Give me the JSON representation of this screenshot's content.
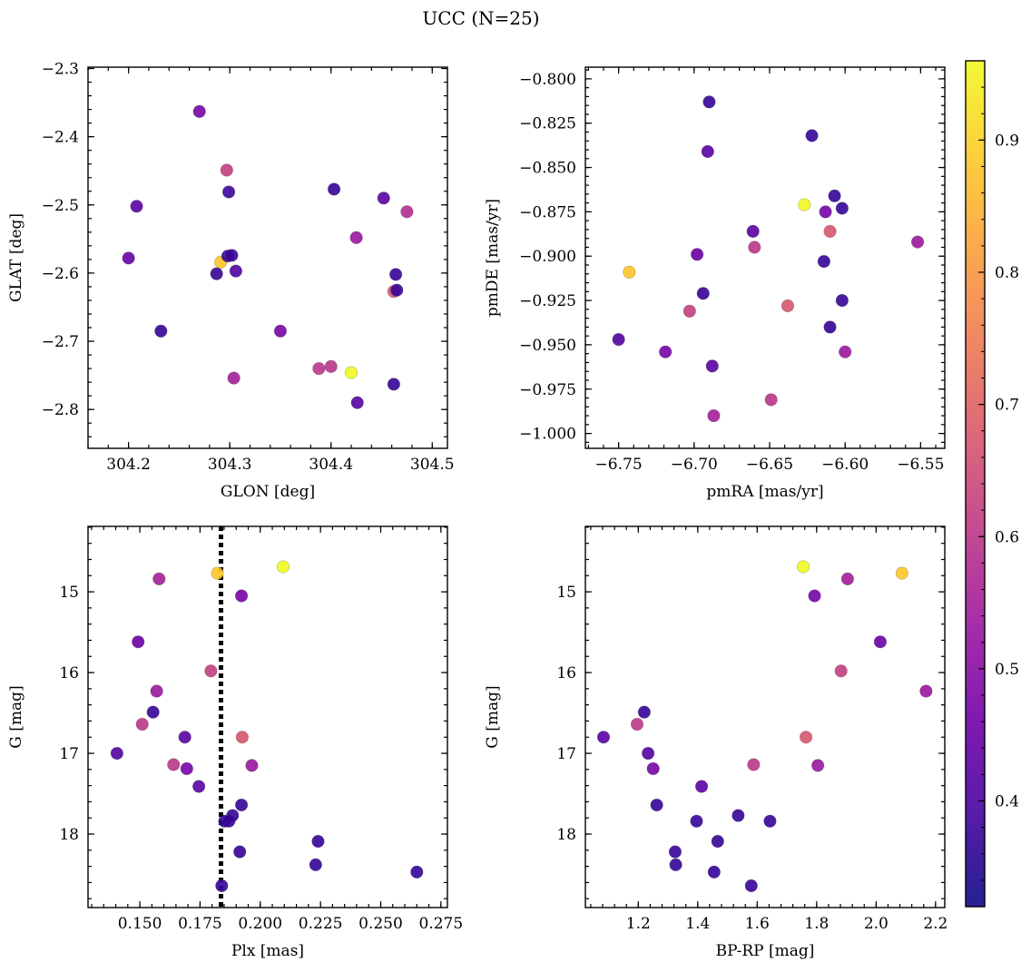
{
  "title": "UCC (N=25)",
  "colormap": {
    "name": "plasma",
    "range": [
      0.32,
      0.96
    ],
    "ticks": [
      0.4,
      0.5,
      0.6,
      0.7,
      0.8,
      0.9
    ],
    "stops": [
      "#0d0887",
      "#46039f",
      "#7201a8",
      "#9c179e",
      "#bd3786",
      "#d8576b",
      "#ed7953",
      "#fb9f3a",
      "#fdca26",
      "#f0f921"
    ]
  },
  "chart_data": [
    {
      "type": "scatter",
      "id": "sky",
      "xlabel": "GLON [deg]",
      "ylabel": "GLAT [deg]",
      "xlim": [
        304.16,
        304.515
      ],
      "ylim": [
        -2.857,
        -2.298
      ],
      "y_inverted": false,
      "xticks": [
        304.2,
        304.3,
        304.4,
        304.5
      ],
      "xtick_labels": [
        "304.2",
        "304.3",
        "304.4",
        "304.5"
      ],
      "yticks": [
        -2.3,
        -2.4,
        -2.5,
        -2.6,
        -2.7,
        -2.8
      ],
      "ytick_labels": [
        "−2.3",
        "−2.4",
        "−2.5",
        "−2.6",
        "−2.7",
        "−2.8"
      ],
      "points": [
        {
          "x": 304.27,
          "y": -2.363,
          "c": 0.47
        },
        {
          "x": 304.297,
          "y": -2.449,
          "c": 0.62
        },
        {
          "x": 304.299,
          "y": -2.481,
          "c": 0.38
        },
        {
          "x": 304.208,
          "y": -2.502,
          "c": 0.42
        },
        {
          "x": 304.403,
          "y": -2.477,
          "c": 0.37
        },
        {
          "x": 304.452,
          "y": -2.49,
          "c": 0.42
        },
        {
          "x": 304.475,
          "y": -2.51,
          "c": 0.58
        },
        {
          "x": 304.425,
          "y": -2.548,
          "c": 0.53
        },
        {
          "x": 304.2,
          "y": -2.578,
          "c": 0.45
        },
        {
          "x": 304.291,
          "y": -2.584,
          "c": 0.88
        },
        {
          "x": 304.298,
          "y": -2.575,
          "c": 0.37
        },
        {
          "x": 304.302,
          "y": -2.574,
          "c": 0.37
        },
        {
          "x": 304.306,
          "y": -2.597,
          "c": 0.41
        },
        {
          "x": 304.287,
          "y": -2.601,
          "c": 0.37
        },
        {
          "x": 304.464,
          "y": -2.602,
          "c": 0.37
        },
        {
          "x": 304.462,
          "y": -2.627,
          "c": 0.67
        },
        {
          "x": 304.465,
          "y": -2.625,
          "c": 0.37
        },
        {
          "x": 304.232,
          "y": -2.685,
          "c": 0.37
        },
        {
          "x": 304.35,
          "y": -2.685,
          "c": 0.47
        },
        {
          "x": 304.388,
          "y": -2.74,
          "c": 0.6
        },
        {
          "x": 304.4,
          "y": -2.737,
          "c": 0.6
        },
        {
          "x": 304.42,
          "y": -2.746,
          "c": 0.96
        },
        {
          "x": 304.304,
          "y": -2.754,
          "c": 0.55
        },
        {
          "x": 304.462,
          "y": -2.763,
          "c": 0.37
        },
        {
          "x": 304.426,
          "y": -2.79,
          "c": 0.42
        }
      ]
    },
    {
      "type": "scatter",
      "id": "pm",
      "xlabel": "pmRA [mas/yr]",
      "ylabel": "pmDE [mas/yr]",
      "xlim": [
        -6.772,
        -6.534
      ],
      "ylim": [
        -1.0084,
        -0.7934
      ],
      "y_inverted": false,
      "xticks": [
        -6.75,
        -6.7,
        -6.65,
        -6.6,
        -6.55
      ],
      "xtick_labels": [
        "−6.75",
        "−6.70",
        "−6.65",
        "−6.60",
        "−6.55"
      ],
      "yticks": [
        -0.8,
        -0.825,
        -0.85,
        -0.875,
        -0.9,
        -0.925,
        -0.95,
        -0.975,
        -1.0
      ],
      "ytick_labels": [
        "−0.800",
        "−0.825",
        "−0.850",
        "−0.875",
        "−0.900",
        "−0.925",
        "−0.950",
        "−0.975",
        "−1.000"
      ],
      "points": [
        {
          "x": -6.69,
          "y": -0.813,
          "c": 0.37
        },
        {
          "x": -6.622,
          "y": -0.832,
          "c": 0.37
        },
        {
          "x": -6.691,
          "y": -0.841,
          "c": 0.42
        },
        {
          "x": -6.607,
          "y": -0.866,
          "c": 0.37
        },
        {
          "x": -6.627,
          "y": -0.871,
          "c": 0.96
        },
        {
          "x": -6.602,
          "y": -0.873,
          "c": 0.37
        },
        {
          "x": -6.613,
          "y": -0.875,
          "c": 0.47
        },
        {
          "x": -6.661,
          "y": -0.886,
          "c": 0.42
        },
        {
          "x": -6.61,
          "y": -0.886,
          "c": 0.67
        },
        {
          "x": -6.552,
          "y": -0.892,
          "c": 0.53
        },
        {
          "x": -6.66,
          "y": -0.895,
          "c": 0.6
        },
        {
          "x": -6.698,
          "y": -0.899,
          "c": 0.45
        },
        {
          "x": -6.614,
          "y": -0.903,
          "c": 0.37
        },
        {
          "x": -6.743,
          "y": -0.909,
          "c": 0.88
        },
        {
          "x": -6.694,
          "y": -0.921,
          "c": 0.37
        },
        {
          "x": -6.602,
          "y": -0.925,
          "c": 0.37
        },
        {
          "x": -6.638,
          "y": -0.928,
          "c": 0.67
        },
        {
          "x": -6.703,
          "y": -0.931,
          "c": 0.62
        },
        {
          "x": -6.61,
          "y": -0.94,
          "c": 0.37
        },
        {
          "x": -6.75,
          "y": -0.947,
          "c": 0.41
        },
        {
          "x": -6.719,
          "y": -0.954,
          "c": 0.47
        },
        {
          "x": -6.6,
          "y": -0.954,
          "c": 0.53
        },
        {
          "x": -6.688,
          "y": -0.962,
          "c": 0.42
        },
        {
          "x": -6.649,
          "y": -0.981,
          "c": 0.6
        },
        {
          "x": -6.687,
          "y": -0.99,
          "c": 0.55
        }
      ]
    },
    {
      "type": "scatter",
      "id": "plx",
      "xlabel": "Plx [mas]",
      "ylabel": "G [mag]",
      "xlim": [
        0.1285,
        0.2777
      ],
      "ylim": [
        18.91,
        14.19
      ],
      "y_inverted": true,
      "vline": {
        "x": 0.1837,
        "style": "dotted"
      },
      "xticks": [
        0.15,
        0.175,
        0.2,
        0.225,
        0.25,
        0.275
      ],
      "xtick_labels": [
        "0.150",
        "0.175",
        "0.200",
        "0.225",
        "0.250",
        "0.275"
      ],
      "yticks": [
        15,
        16,
        17,
        18
      ],
      "ytick_labels": [
        "15",
        "16",
        "17",
        "18"
      ],
      "points": [
        {
          "x": 0.2095,
          "y": 14.69,
          "c": 0.96
        },
        {
          "x": 0.1822,
          "y": 14.77,
          "c": 0.88
        },
        {
          "x": 0.158,
          "y": 14.84,
          "c": 0.55
        },
        {
          "x": 0.1922,
          "y": 15.05,
          "c": 0.47
        },
        {
          "x": 0.1493,
          "y": 15.62,
          "c": 0.45
        },
        {
          "x": 0.1795,
          "y": 15.98,
          "c": 0.62
        },
        {
          "x": 0.157,
          "y": 16.23,
          "c": 0.53
        },
        {
          "x": 0.1555,
          "y": 16.49,
          "c": 0.37
        },
        {
          "x": 0.151,
          "y": 16.64,
          "c": 0.6
        },
        {
          "x": 0.1687,
          "y": 16.8,
          "c": 0.42
        },
        {
          "x": 0.1925,
          "y": 16.8,
          "c": 0.67
        },
        {
          "x": 0.1405,
          "y": 17.0,
          "c": 0.41
        },
        {
          "x": 0.164,
          "y": 17.14,
          "c": 0.6
        },
        {
          "x": 0.1965,
          "y": 17.15,
          "c": 0.53
        },
        {
          "x": 0.1695,
          "y": 17.19,
          "c": 0.47
        },
        {
          "x": 0.1745,
          "y": 17.41,
          "c": 0.42
        },
        {
          "x": 0.1922,
          "y": 17.64,
          "c": 0.37
        },
        {
          "x": 0.1885,
          "y": 17.77,
          "c": 0.37
        },
        {
          "x": 0.1852,
          "y": 17.84,
          "c": 0.37
        },
        {
          "x": 0.187,
          "y": 17.84,
          "c": 0.37
        },
        {
          "x": 0.224,
          "y": 18.09,
          "c": 0.37
        },
        {
          "x": 0.1915,
          "y": 18.22,
          "c": 0.37
        },
        {
          "x": 0.223,
          "y": 18.38,
          "c": 0.37
        },
        {
          "x": 0.265,
          "y": 18.47,
          "c": 0.37
        },
        {
          "x": 0.184,
          "y": 18.64,
          "c": 0.37
        }
      ]
    },
    {
      "type": "scatter",
      "id": "cmd",
      "xlabel": "BP-RP [mag]",
      "ylabel": "G [mag]",
      "xlim": [
        1.022,
        2.231
      ],
      "ylim": [
        18.91,
        14.19
      ],
      "y_inverted": true,
      "xticks": [
        1.2,
        1.4,
        1.6,
        1.8,
        2.0,
        2.2
      ],
      "xtick_labels": [
        "1.2",
        "1.4",
        "1.6",
        "1.8",
        "2.0",
        "2.2"
      ],
      "yticks": [
        15,
        16,
        17,
        18
      ],
      "ytick_labels": [
        "15",
        "16",
        "17",
        "18"
      ],
      "points": [
        {
          "x": 1.755,
          "y": 14.69,
          "c": 0.96
        },
        {
          "x": 2.087,
          "y": 14.77,
          "c": 0.88
        },
        {
          "x": 1.904,
          "y": 14.84,
          "c": 0.55
        },
        {
          "x": 1.793,
          "y": 15.05,
          "c": 0.47
        },
        {
          "x": 2.014,
          "y": 15.62,
          "c": 0.45
        },
        {
          "x": 1.882,
          "y": 15.98,
          "c": 0.62
        },
        {
          "x": 2.168,
          "y": 16.23,
          "c": 0.53
        },
        {
          "x": 1.22,
          "y": 16.49,
          "c": 0.37
        },
        {
          "x": 1.196,
          "y": 16.64,
          "c": 0.6
        },
        {
          "x": 1.083,
          "y": 16.8,
          "c": 0.42
        },
        {
          "x": 1.764,
          "y": 16.8,
          "c": 0.67
        },
        {
          "x": 1.233,
          "y": 17.0,
          "c": 0.41
        },
        {
          "x": 1.588,
          "y": 17.14,
          "c": 0.6
        },
        {
          "x": 1.804,
          "y": 17.15,
          "c": 0.53
        },
        {
          "x": 1.25,
          "y": 17.19,
          "c": 0.47
        },
        {
          "x": 1.413,
          "y": 17.41,
          "c": 0.42
        },
        {
          "x": 1.262,
          "y": 17.64,
          "c": 0.37
        },
        {
          "x": 1.536,
          "y": 17.77,
          "c": 0.37
        },
        {
          "x": 1.396,
          "y": 17.84,
          "c": 0.37
        },
        {
          "x": 1.643,
          "y": 17.84,
          "c": 0.37
        },
        {
          "x": 1.467,
          "y": 18.09,
          "c": 0.37
        },
        {
          "x": 1.324,
          "y": 18.22,
          "c": 0.37
        },
        {
          "x": 1.326,
          "y": 18.38,
          "c": 0.37
        },
        {
          "x": 1.455,
          "y": 18.47,
          "c": 0.37
        },
        {
          "x": 1.58,
          "y": 18.64,
          "c": 0.37
        }
      ]
    }
  ]
}
